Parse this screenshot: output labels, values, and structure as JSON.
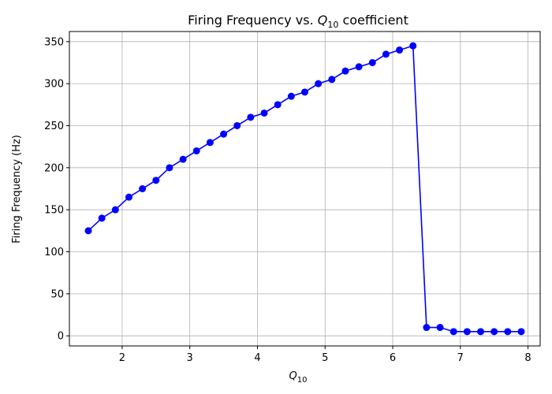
{
  "chart_data": {
    "type": "line",
    "title": {
      "prefix": "Firing Frequency vs. ",
      "symbol": "Q",
      "subscript": "10",
      "suffix": " coefficient"
    },
    "xlabel": {
      "symbol": "Q",
      "subscript": "10"
    },
    "ylabel": "Firing Frequency (Hz)",
    "xlim": [
      1.22,
      8.18
    ],
    "ylim": [
      -12,
      362
    ],
    "xticks": [
      "2",
      "3",
      "4",
      "5",
      "6",
      "7",
      "8"
    ],
    "yticks": [
      "0",
      "50",
      "100",
      "150",
      "200",
      "250",
      "300",
      "350"
    ],
    "grid": true,
    "marker": "circle",
    "series": [
      {
        "color": "#0000ff",
        "x": [
          1.5,
          1.7,
          1.9,
          2.1,
          2.3,
          2.5,
          2.7,
          2.9,
          3.1,
          3.3,
          3.5,
          3.7,
          3.9,
          4.1,
          4.3,
          4.5,
          4.7,
          4.9,
          5.1,
          5.3,
          5.5,
          5.7,
          5.9,
          6.1,
          6.3,
          6.5,
          6.7,
          6.9,
          7.1,
          7.3,
          7.5,
          7.7,
          7.9
        ],
        "y": [
          125,
          140,
          150,
          165,
          175,
          185,
          200,
          210,
          220,
          230,
          240,
          250,
          260,
          265,
          275,
          285,
          290,
          300,
          305,
          315,
          320,
          325,
          335,
          340,
          345,
          10,
          10,
          5,
          5,
          5,
          5,
          5,
          5
        ]
      }
    ]
  }
}
